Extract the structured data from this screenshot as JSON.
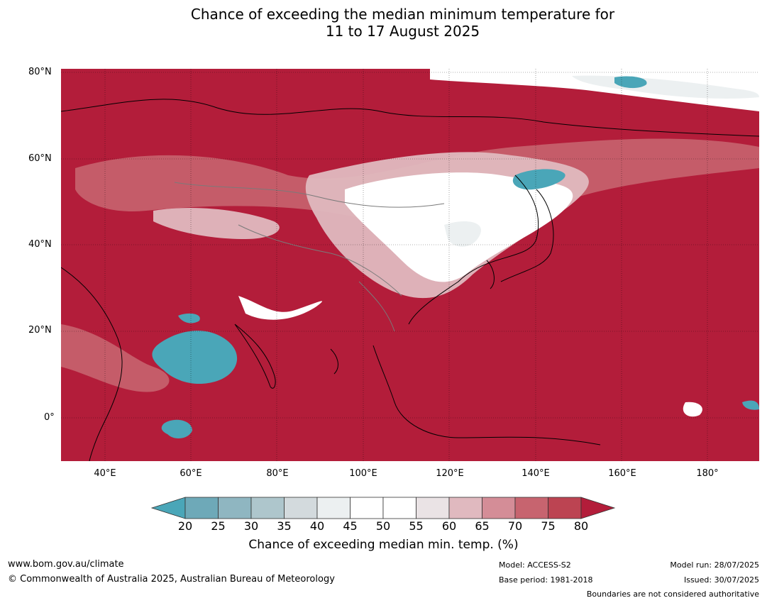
{
  "title": {
    "line1": "Chance of exceeding the median minimum temperature for",
    "line2": "11 to 17 August 2025"
  },
  "lat_labels": [
    "80°N",
    "60°N",
    "40°N",
    "20°N",
    "0°"
  ],
  "lon_labels": [
    "40°E",
    "60°E",
    "80°E",
    "100°E",
    "120°E",
    "140°E",
    "160°E",
    "180°"
  ],
  "colorbar": {
    "ticks": [
      "20",
      "25",
      "30",
      "35",
      "40",
      "45",
      "50",
      "55",
      "60",
      "65",
      "70",
      "75",
      "80"
    ],
    "colors": [
      "#4aa6b8",
      "#6ea9b8",
      "#8fb6c1",
      "#aec6cc",
      "#d3dadd",
      "#ecf0f1",
      "#ffffff",
      "#ffffff",
      "#eae3e5",
      "#e0b9bf",
      "#d48d97",
      "#c7646f",
      "#bc4452",
      "#b31d3a"
    ],
    "label": "Chance of exceeding median min. temp. (%)"
  },
  "footer": {
    "url": "www.bom.gov.au/climate",
    "copyright": "© Commonwealth of Australia 2025, Australian Bureau of Meteorology",
    "model": "Model: ACCESS-S2",
    "base_period": "Base period: 1981-2018",
    "model_run": "Model run: 28/07/2025",
    "issued": "Issued: 30/07/2025",
    "disclaimer": "Boundaries are not considered authoritative"
  }
}
